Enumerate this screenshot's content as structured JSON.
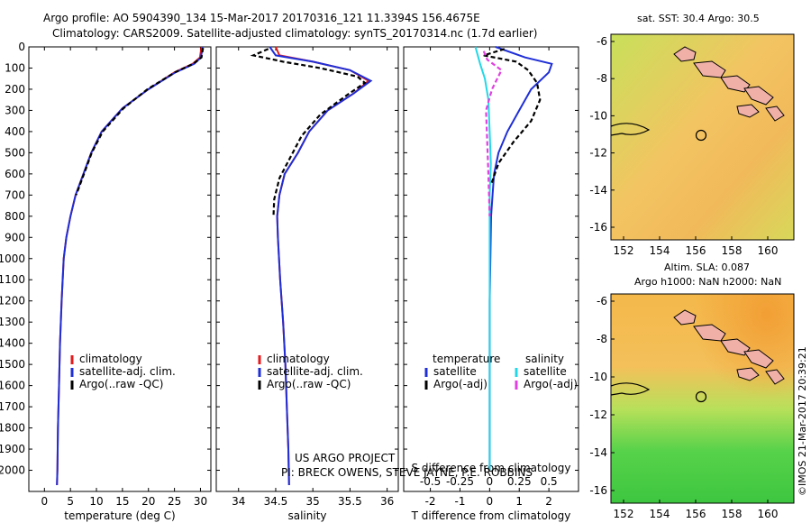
{
  "header": {
    "line1": "Argo profile: AO 5904390_134 15-Mar-2017 20170316_121 11.3394S 156.4675E",
    "line2": "Climatology: CARS2009. Satellite-adjusted climatology: synTS_20170314.nc (1.7d earlier)"
  },
  "credit": {
    "line1": "US ARGO PROJECT",
    "line2": "PI: BRECK OWENS, STEVE JAYNE, P.E. ROBBINS"
  },
  "side_label": "©IMOS 21-Mar-2017 20:39:21",
  "colors": {
    "climatology": "#e41a1c",
    "satellite": "#1f2fd6",
    "argo": "#000000",
    "sal_satellite": "#22d8e6",
    "sal_argo": "#e040e0"
  },
  "map_top": {
    "title": "sat. SST: 30.4  Argo: 30.5",
    "yticks": [
      "-6",
      "-8",
      "-10",
      "-12",
      "-14",
      "-16"
    ],
    "xticks": [
      "152",
      "154",
      "156",
      "158",
      "160"
    ]
  },
  "map_bottom": {
    "title1": "Altim. SLA: 0.087",
    "title2": "Argo h1000: NaN h2000: NaN",
    "yticks": [
      "-6",
      "-8",
      "-10",
      "-12",
      "-14",
      "-16"
    ],
    "xticks": [
      "152",
      "154",
      "156",
      "158",
      "160"
    ]
  },
  "chart_data": [
    {
      "type": "line",
      "xlabel": "temperature (deg C)",
      "ylabel": "",
      "xlim": [
        -3,
        32
      ],
      "ylim": [
        2100,
        0
      ],
      "xticks": [
        0,
        5,
        10,
        15,
        20,
        25,
        30
      ],
      "yticks": [
        0,
        100,
        200,
        300,
        400,
        500,
        600,
        700,
        800,
        900,
        1000,
        1100,
        1200,
        1300,
        1400,
        1500,
        1600,
        1700,
        1800,
        1900,
        2000
      ],
      "legend": [
        "climatology",
        "satellite-adj. clim.",
        "Argo(..raw -QC)"
      ],
      "legend_position": "lower-left",
      "series": [
        {
          "name": "climatology",
          "color": "#e41a1c",
          "x": [
            30.2,
            29.9,
            28.5,
            25,
            20,
            15,
            11,
            9,
            7.5,
            6,
            5,
            4.2,
            3.7,
            3.3,
            3.0,
            2.8,
            2.6,
            2.5,
            2.4
          ],
          "y": [
            0,
            50,
            80,
            120,
            200,
            290,
            400,
            500,
            600,
            700,
            800,
            900,
            1000,
            1200,
            1400,
            1600,
            1800,
            2000,
            2070
          ]
        },
        {
          "name": "satellite-adj. clim.",
          "color": "#1f2fd6",
          "x": [
            30.4,
            30.1,
            28.8,
            25.2,
            20,
            15,
            11,
            9,
            7.5,
            6,
            5,
            4.2,
            3.7,
            3.3,
            3.0,
            2.8,
            2.6,
            2.5,
            2.4
          ],
          "y": [
            0,
            50,
            80,
            120,
            200,
            290,
            400,
            500,
            600,
            700,
            800,
            900,
            1000,
            1200,
            1400,
            1600,
            1800,
            2000,
            2070
          ]
        },
        {
          "name": "Argo(..raw -QC)",
          "color": "#000000",
          "x": [
            30.5,
            30.2,
            28.6,
            25.1,
            19.8,
            15.2,
            11.2,
            9.1,
            7.6,
            6.1
          ],
          "y": [
            5,
            50,
            80,
            120,
            200,
            290,
            400,
            500,
            600,
            700
          ]
        }
      ]
    },
    {
      "type": "line",
      "xlabel": "salinity",
      "ylabel": "",
      "xlim": [
        33.7,
        36.15
      ],
      "ylim": [
        2100,
        0
      ],
      "xticks": [
        34,
        34.5,
        35,
        35.5,
        36
      ],
      "xticklabels": [
        "34",
        "34.5",
        "35",
        "35.5",
        "36"
      ],
      "legend": [
        "climatology",
        "satellite-adj. clim.",
        "Argo(..raw -QC)"
      ],
      "legend_position": "lower-left",
      "series": [
        {
          "name": "climatology",
          "color": "#e41a1c",
          "x": [
            34.5,
            34.55,
            35.0,
            35.5,
            35.75,
            35.55,
            35.2,
            34.95,
            34.8,
            34.62,
            34.55,
            34.52,
            34.53,
            34.56,
            34.6,
            34.63,
            34.65,
            34.67,
            34.68
          ],
          "y": [
            0,
            40,
            70,
            110,
            160,
            220,
            300,
            400,
            500,
            600,
            700,
            800,
            900,
            1100,
            1300,
            1500,
            1700,
            1900,
            2070
          ]
        },
        {
          "name": "satellite-adj. clim.",
          "color": "#1f2fd6",
          "x": [
            34.42,
            34.5,
            35.0,
            35.5,
            35.78,
            35.55,
            35.2,
            34.95,
            34.8,
            34.62,
            34.55,
            34.52,
            34.53,
            34.56,
            34.6,
            34.63,
            34.65,
            34.67,
            34.68
          ],
          "y": [
            0,
            40,
            70,
            110,
            160,
            220,
            300,
            400,
            500,
            600,
            700,
            800,
            900,
            1100,
            1300,
            1500,
            1700,
            1900,
            2070
          ]
        },
        {
          "name": "Argo(..raw -QC)",
          "color": "#000000",
          "x": [
            34.4,
            34.2,
            34.6,
            35.1,
            35.6,
            35.7,
            35.45,
            35.1,
            34.85,
            34.7,
            34.55,
            34.48,
            34.47
          ],
          "y": [
            10,
            40,
            70,
            100,
            140,
            170,
            230,
            320,
            420,
            520,
            620,
            720,
            800
          ]
        }
      ]
    },
    {
      "type": "line",
      "xlabel": "T difference from climatology",
      "x2label": "S difference from climatology",
      "ylabel": "",
      "xlim": [
        -2.9,
        3
      ],
      "ylim": [
        2100,
        0
      ],
      "xticks": [
        -2,
        -1,
        0,
        1,
        2
      ],
      "x2ticks": [
        -0.5,
        -0.25,
        0,
        0.25,
        0.5
      ],
      "x2ticklabels": [
        "-0.5",
        "-0.25",
        "0",
        "0.25",
        "0.5"
      ],
      "legend": [
        "temperature",
        "satellite",
        "Argo(-adj)",
        "salinity",
        "satellite",
        "Argo(-adj)"
      ],
      "legend_position": "lower-center",
      "series": [
        {
          "name": "satellite",
          "color": "#1f2fd6",
          "group": "temperature",
          "x": [
            0.2,
            1.2,
            2.1,
            2.0,
            1.4,
            1.0,
            0.6,
            0.3,
            0.15,
            0.1,
            0.05,
            0.0,
            0.0
          ],
          "y": [
            0,
            50,
            80,
            120,
            200,
            300,
            400,
            500,
            600,
            700,
            800,
            1200,
            2000
          ]
        },
        {
          "name": "Argo(-adj)",
          "color": "#000000",
          "group": "temperature",
          "x": [
            0.5,
            -0.2,
            0.9,
            1.3,
            1.6,
            1.7,
            1.4,
            0.8,
            0.3,
            0.05
          ],
          "y": [
            10,
            40,
            70,
            110,
            170,
            250,
            350,
            450,
            550,
            650
          ]
        },
        {
          "name": "satellite",
          "color": "#22d8e6",
          "group": "salinity",
          "x": [
            -0.12,
            -0.08,
            -0.04,
            -0.01,
            0.0,
            0.01,
            0.0,
            0.0,
            0.0
          ],
          "y": [
            0,
            80,
            150,
            250,
            400,
            550,
            700,
            1000,
            2000
          ]
        },
        {
          "name": "Argo(-adj)",
          "color": "#e040e0",
          "group": "salinity",
          "x": [
            -0.05,
            -0.02,
            0.1,
            0.02,
            -0.03,
            -0.02,
            -0.01,
            0.0
          ],
          "y": [
            20,
            60,
            110,
            200,
            300,
            450,
            600,
            800
          ]
        }
      ]
    }
  ]
}
